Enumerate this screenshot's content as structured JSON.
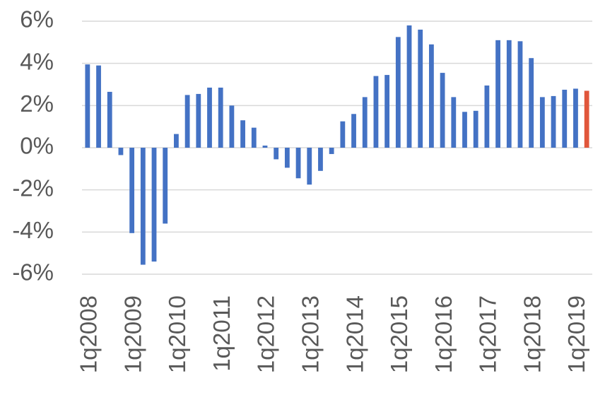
{
  "chart_data": {
    "type": "bar",
    "categories": [
      "1q2008",
      null,
      null,
      null,
      "1q2009",
      null,
      null,
      null,
      "1q2010",
      null,
      null,
      null,
      "1q2011",
      null,
      null,
      null,
      "1q2012",
      null,
      null,
      null,
      "1q2013",
      null,
      null,
      null,
      "1q2014",
      null,
      null,
      null,
      "1q2015",
      null,
      null,
      null,
      "1q2016",
      null,
      null,
      null,
      "1q2017",
      null,
      null,
      null,
      "1q2018",
      null,
      null,
      null,
      "1q2019",
      null
    ],
    "values": [
      3.95,
      3.9,
      2.65,
      -0.35,
      -4.05,
      -5.55,
      -5.4,
      -3.6,
      0.65,
      2.5,
      2.55,
      2.85,
      2.85,
      2.0,
      1.3,
      0.95,
      0.1,
      -0.55,
      -0.95,
      -1.45,
      -1.75,
      -1.1,
      -0.3,
      1.25,
      1.6,
      2.4,
      3.4,
      3.45,
      5.25,
      5.8,
      5.6,
      4.9,
      3.55,
      2.4,
      1.7,
      1.75,
      2.95,
      5.1,
      5.1,
      5.05,
      4.25,
      2.4,
      2.45,
      2.75,
      2.8,
      2.7
    ],
    "color": "#4472c4",
    "highlight": {
      "index": 45,
      "color": "#e0563b"
    },
    "ylim": [
      -6,
      6
    ],
    "yticks": [
      {
        "value": -6,
        "label": "-6%"
      },
      {
        "value": -4,
        "label": "-4%"
      },
      {
        "value": -2,
        "label": "-2%"
      },
      {
        "value": 0,
        "label": "0%"
      },
      {
        "value": 2,
        "label": "2%"
      },
      {
        "value": 4,
        "label": "4%"
      },
      {
        "value": 6,
        "label": "6%"
      }
    ],
    "grid": true
  }
}
